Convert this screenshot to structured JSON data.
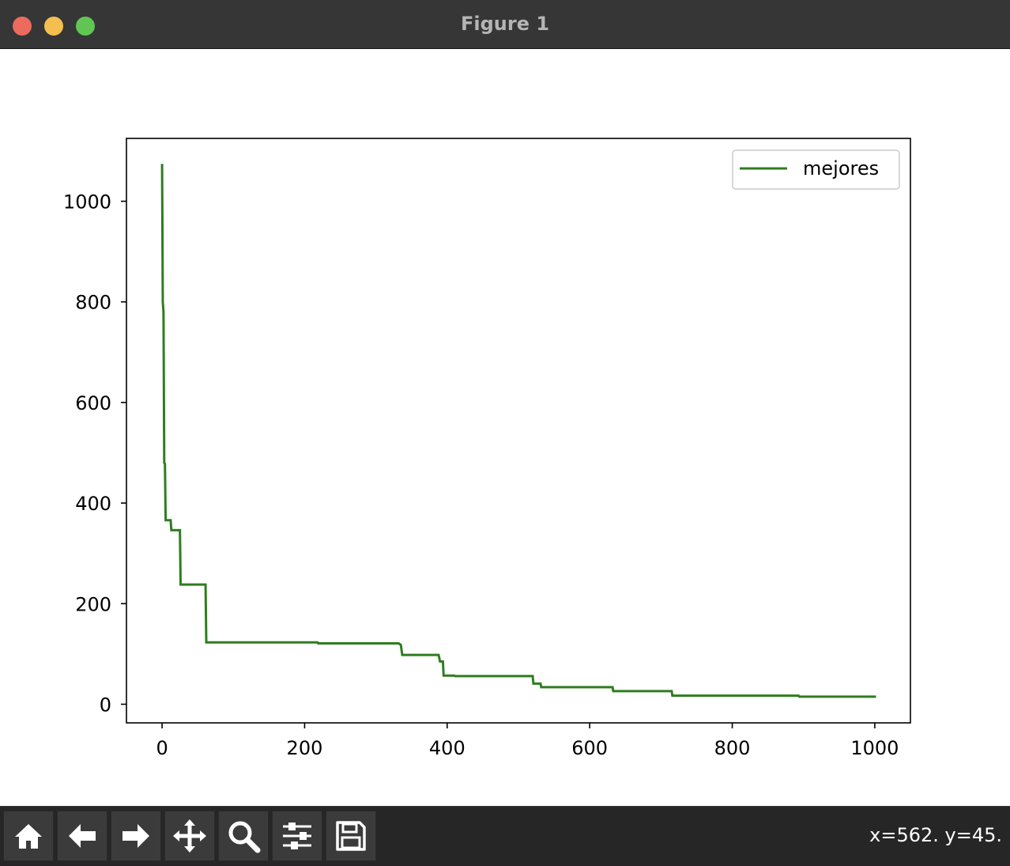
{
  "window": {
    "title": "Figure 1"
  },
  "toolbar": {
    "buttons": [
      {
        "name": "home-icon"
      },
      {
        "name": "back-arrow-icon"
      },
      {
        "name": "forward-arrow-icon"
      },
      {
        "name": "pan-icon"
      },
      {
        "name": "zoom-icon"
      },
      {
        "name": "configure-subplots-icon"
      },
      {
        "name": "save-icon"
      }
    ],
    "coords": "x=562. y=45."
  },
  "colors": {
    "series": "#2e7d1f",
    "titlebar": "#363636",
    "toolbar": "#262626"
  },
  "chart_data": {
    "type": "line",
    "step": true,
    "xlim": [
      -50,
      1050
    ],
    "ylim": [
      -37,
      1125
    ],
    "xticks": [
      0,
      200,
      400,
      600,
      800,
      1000
    ],
    "yticks": [
      0,
      200,
      400,
      600,
      800,
      1000
    ],
    "legend_position": "top-right",
    "series": [
      {
        "name": "mejores",
        "color": "#2e7d1f",
        "points": [
          [
            0,
            1072
          ],
          [
            1,
            800
          ],
          [
            2,
            780
          ],
          [
            3,
            480
          ],
          [
            4,
            478
          ],
          [
            5,
            366
          ],
          [
            12,
            366
          ],
          [
            13,
            346
          ],
          [
            25,
            346
          ],
          [
            26,
            238
          ],
          [
            61,
            238
          ],
          [
            62,
            123
          ],
          [
            218,
            123
          ],
          [
            219,
            121
          ],
          [
            332,
            121
          ],
          [
            335,
            118
          ],
          [
            337,
            98
          ],
          [
            388,
            98
          ],
          [
            390,
            85
          ],
          [
            394,
            85
          ],
          [
            395,
            57
          ],
          [
            410,
            57
          ],
          [
            411,
            56
          ],
          [
            520,
            56
          ],
          [
            521,
            41
          ],
          [
            531,
            41
          ],
          [
            532,
            34
          ],
          [
            632,
            34
          ],
          [
            633,
            26
          ],
          [
            715,
            26
          ],
          [
            716,
            17
          ],
          [
            893,
            17
          ],
          [
            894,
            15
          ],
          [
            1000,
            15
          ]
        ]
      }
    ]
  }
}
